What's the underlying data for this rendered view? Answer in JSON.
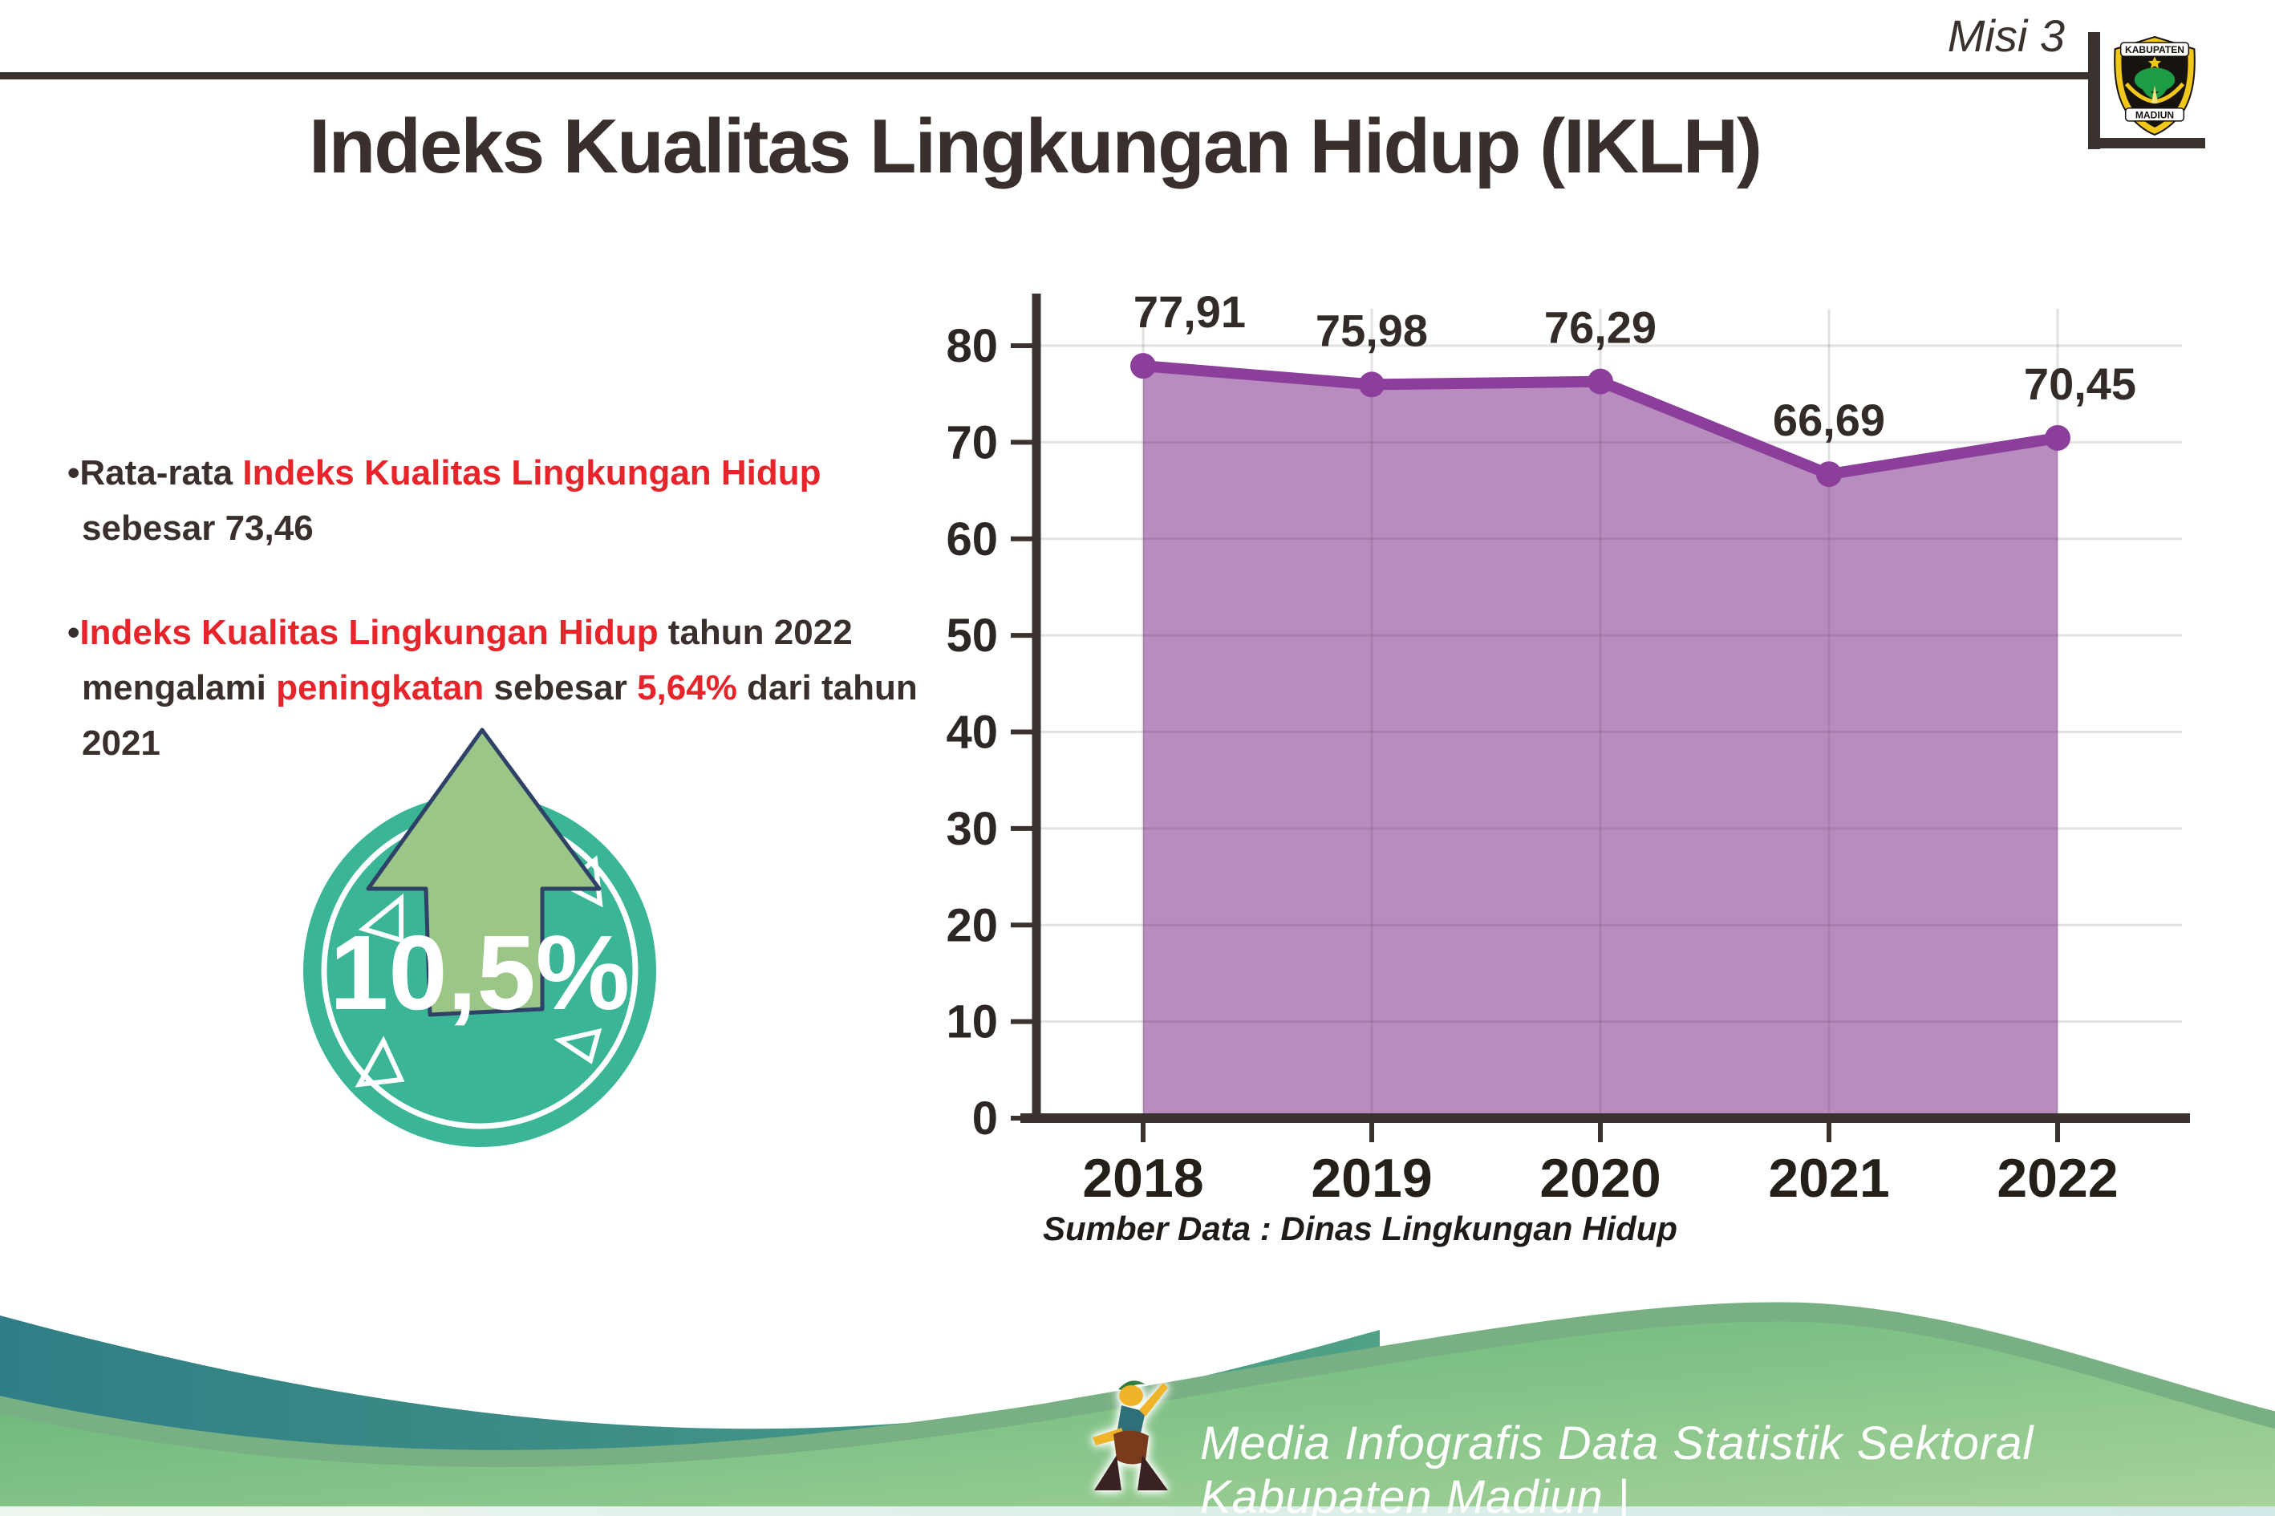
{
  "header": {
    "misi_label": "Misi 3",
    "logo": {
      "top_text": "KABUPATEN",
      "bottom_text": "MADIUN"
    }
  },
  "title": "Indeks Kualitas Lingkungan Hidup (IKLH)",
  "bullet_char": "•",
  "bullets": [
    {
      "segments": [
        {
          "text": "Rata-rata ",
          "red": false
        },
        {
          "text": "Indeks Kualitas Lingkungan Hidup",
          "red": true
        },
        {
          "text": " sebesar 73,46",
          "red": false
        }
      ]
    },
    {
      "segments": [
        {
          "text": "Indeks Kualitas Lingkungan Hidup",
          "red": true
        },
        {
          "text": " tahun 2022 mengalami ",
          "red": false
        },
        {
          "text": "peningkatan",
          "red": true
        },
        {
          "text": " sebesar ",
          "red": false
        },
        {
          "text": "5,64%",
          "red": true
        },
        {
          "text": " dari tahun 2021",
          "red": false
        }
      ]
    }
  ],
  "badge": {
    "value": "10,5%"
  },
  "chart_data": {
    "type": "area",
    "categories": [
      "2018",
      "2019",
      "2020",
      "2021",
      "2022"
    ],
    "values": [
      77.91,
      75.98,
      76.29,
      66.69,
      70.45
    ],
    "value_labels": [
      "77,91",
      "75,98",
      "76,29",
      "66,69",
      "70,45"
    ],
    "title": "",
    "xlabel": "",
    "ylabel": "",
    "ylim": [
      0,
      80
    ],
    "yticks": [
      0,
      10,
      20,
      30,
      40,
      50,
      60,
      70,
      80
    ],
    "grid": true,
    "legend": "none",
    "source": "Sumber Data : Dinas Lingkungan Hidup"
  },
  "colors": {
    "dark_text": "#3a322f",
    "accent_red": "#e8242b",
    "chart_line": "#8b3f9b",
    "chart_fill": "#b687bd",
    "badge_teal": "#3ab697",
    "arrow_green": "#9cc687"
  },
  "footer": {
    "text": "Media Infografis Data Statistik Sektoral Kabupaten Madiun |"
  }
}
